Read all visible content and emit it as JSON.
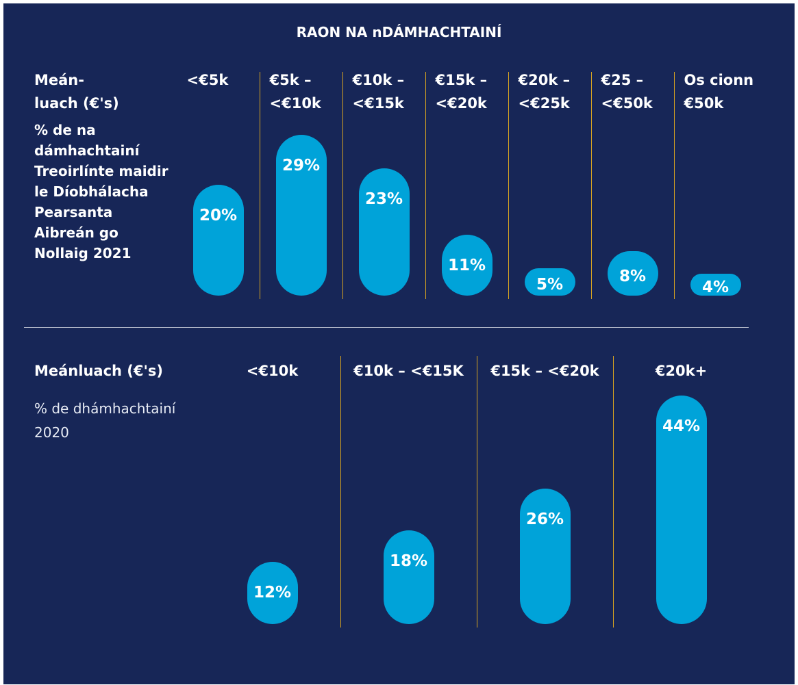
{
  "title": "RAON NA nDÁMHACHTAINÍ",
  "chart_data": [
    {
      "type": "bar",
      "axis_label": "Meán-luach (€'s)",
      "subtitle": "% de na dámhachtainí Treoirlínte maidir le Díobhálacha Pearsanta Aibreán go Nollaig 2021",
      "categories": [
        "<€5k",
        "€5k – <€10k",
        "€10k – <€15k",
        "€15k – <€20k",
        "€20k – <€25k",
        "€25 – <€50k",
        "Os cionn €50k"
      ],
      "values": [
        20,
        29,
        23,
        11,
        5,
        8,
        4
      ],
      "value_labels": [
        "20%",
        "29%",
        "23%",
        "11%",
        "5%",
        "8%",
        "4%"
      ],
      "color": "#00a3d9"
    },
    {
      "type": "bar",
      "axis_label": "Meánluach (€'s)",
      "subtitle": "% de dhámhachtainí 2020",
      "categories": [
        "<€10k",
        "€10k – <€15K",
        "€15k – <€20k",
        "€20k+"
      ],
      "values": [
        12,
        18,
        26,
        44
      ],
      "value_labels": [
        "12%",
        "18%",
        "26%",
        "44%"
      ],
      "color": "#00a3d9"
    }
  ]
}
